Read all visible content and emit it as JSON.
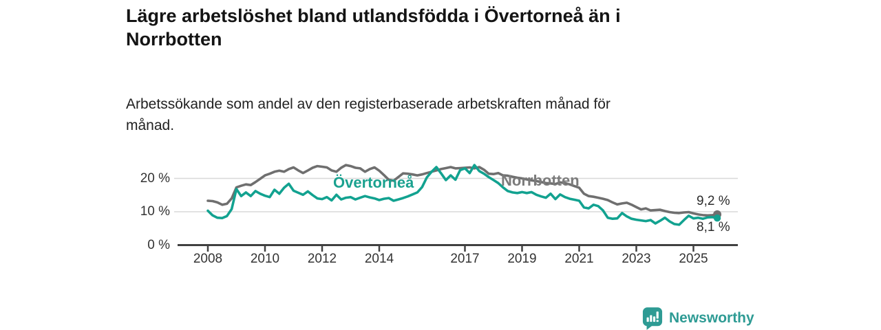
{
  "header": {
    "title_lines": [
      "Lägre arbetslöshet bland utlandsfödda i Övertorneå än i",
      "Norrbotten"
    ],
    "subtitle_lines": [
      "Arbetssökande som andel av den registerbaserade arbetskraften månad för",
      "månad."
    ]
  },
  "chart_data": {
    "type": "line",
    "title": "Lägre arbetslöshet bland utlandsfödda i Övertorneå än i Norrbotten",
    "subtitle": "Arbetssökande som andel av den registerbaserade arbetskraften månad för månad.",
    "unit": "%",
    "grid": "horizontal-only",
    "legend_position": "inline-labels-on-lines",
    "x_start_year": 2008.0,
    "x_step_months": 2,
    "x_end_label_period": "nov 2025",
    "ylim": [
      0,
      26
    ],
    "x_ticks": [
      {
        "value": 2008,
        "label": "2008"
      },
      {
        "value": 2010,
        "label": "2010"
      },
      {
        "value": 2012,
        "label": "2012"
      },
      {
        "value": 2014,
        "label": "2014"
      },
      {
        "value": 2017,
        "label": "2017"
      },
      {
        "value": 2019,
        "label": "2019"
      },
      {
        "value": 2021,
        "label": "2021"
      },
      {
        "value": 2023,
        "label": "2023"
      },
      {
        "value": 2025,
        "label": "2025"
      }
    ],
    "y_ticks": [
      {
        "value": 0,
        "label": "0 %"
      },
      {
        "value": 10,
        "label": "10 %"
      },
      {
        "value": 20,
        "label": "20 %"
      }
    ],
    "series": [
      {
        "name": "Norrbotten",
        "color": "#6f6f6f",
        "label_color": "#7b7b7b",
        "end_value": 9.2,
        "end_label": "9,2 %",
        "values": [
          13.3,
          13.2,
          12.8,
          12.1,
          12.4,
          14.0,
          17.3,
          17.8,
          18.2,
          18.0,
          18.9,
          19.9,
          20.9,
          21.4,
          22.0,
          22.3,
          22.0,
          22.8,
          23.3,
          22.4,
          21.6,
          22.4,
          23.2,
          23.7,
          23.5,
          23.3,
          22.4,
          22.0,
          23.2,
          24.0,
          23.7,
          23.2,
          23.0,
          22.0,
          22.8,
          23.3,
          22.3,
          21.0,
          19.6,
          19.3,
          20.4,
          21.5,
          21.4,
          21.2,
          20.9,
          21.2,
          21.6,
          22.0,
          22.4,
          22.8,
          23.1,
          23.4,
          23.0,
          23.1,
          23.2,
          23.3,
          23.0,
          23.4,
          22.6,
          21.4,
          21.3,
          21.6,
          20.9,
          20.8,
          20.5,
          20.2,
          20.0,
          19.7,
          19.4,
          19.2,
          18.9,
          18.6,
          18.5,
          18.3,
          18.8,
          18.6,
          18.2,
          17.7,
          17.2,
          15.4,
          14.7,
          14.5,
          14.2,
          13.9,
          13.5,
          12.8,
          12.2,
          12.5,
          12.7,
          12.1,
          11.4,
          10.7,
          11.0,
          10.4,
          10.5,
          10.6,
          10.2,
          9.9,
          9.7,
          9.6,
          9.8,
          9.9,
          9.5,
          9.2,
          9.0,
          8.9,
          9.0,
          9.2
        ]
      },
      {
        "name": "Övertorneå",
        "color": "#12a290",
        "label_color": "#1aa18f",
        "end_value": 8.1,
        "end_label": "8,1 %",
        "values": [
          10.3,
          8.9,
          8.2,
          8.1,
          8.7,
          10.8,
          16.8,
          14.7,
          15.8,
          14.7,
          16.2,
          15.4,
          14.8,
          14.4,
          16.6,
          15.4,
          17.2,
          18.4,
          16.3,
          15.7,
          15.1,
          16.1,
          15.0,
          14.0,
          13.8,
          14.4,
          13.4,
          15.1,
          13.7,
          14.2,
          14.4,
          13.7,
          14.2,
          14.7,
          14.3,
          14.0,
          13.5,
          13.9,
          14.1,
          13.3,
          13.7,
          14.1,
          14.6,
          15.2,
          15.8,
          17.4,
          20.3,
          22.0,
          23.4,
          21.5,
          19.5,
          20.9,
          19.6,
          22.5,
          23.0,
          21.6,
          24.0,
          22.2,
          21.4,
          20.4,
          19.5,
          18.6,
          17.3,
          16.2,
          15.8,
          15.6,
          15.9,
          15.6,
          15.9,
          15.1,
          14.6,
          14.2,
          15.4,
          13.8,
          15.2,
          14.4,
          13.9,
          13.6,
          13.3,
          11.3,
          11.0,
          12.1,
          11.7,
          10.4,
          8.2,
          7.9,
          8.0,
          9.6,
          8.6,
          7.9,
          7.6,
          7.4,
          7.2,
          7.5,
          6.5,
          7.3,
          8.2,
          7.1,
          6.3,
          6.1,
          7.5,
          8.8,
          8.0,
          8.2,
          7.9,
          8.3,
          8.4,
          8.1
        ]
      }
    ]
  },
  "footer": {
    "brand": "Newsworthy",
    "brand_color": "#2e9b94"
  }
}
